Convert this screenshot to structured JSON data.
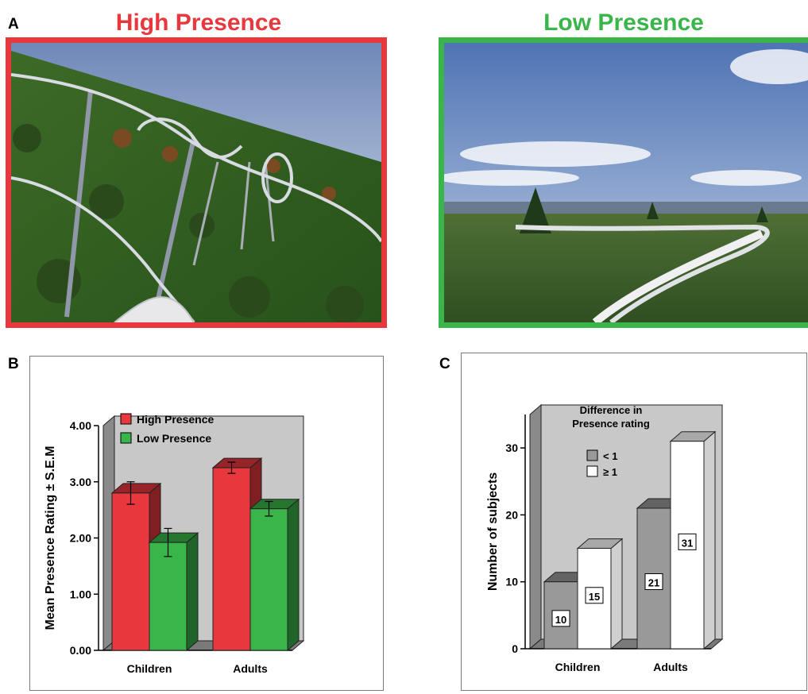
{
  "panel_a": {
    "letter": "A",
    "high_title": "High Presence",
    "low_title": "Low Presence",
    "high_color": "#e8383d",
    "low_color": "#3ab54a"
  },
  "panel_b": {
    "letter": "B"
  },
  "panel_c": {
    "letter": "C"
  },
  "chart_data": [
    {
      "type": "bar",
      "categories": [
        "Children",
        "Adults"
      ],
      "series": [
        {
          "name": "High Presence",
          "values": [
            2.8,
            3.25
          ],
          "errors": [
            0.2,
            0.1
          ],
          "color": "#e8383d"
        },
        {
          "name": "Low Presence",
          "values": [
            1.92,
            2.52
          ],
          "errors": [
            0.25,
            0.13
          ],
          "color": "#3ab54a"
        }
      ],
      "xlabel": "",
      "ylabel": "Mean Presence Rating ± S.E.M",
      "ylim": [
        0,
        4
      ],
      "yticks": [
        "0.00",
        "1.00",
        "2.00",
        "3.00",
        "4.00"
      ],
      "legend": "top-left",
      "style": "3d"
    },
    {
      "type": "bar",
      "categories": [
        "Children",
        "Adults"
      ],
      "legend_title": "Difference in Presence rating",
      "series": [
        {
          "name": "< 1",
          "values": [
            10,
            21
          ],
          "labels": [
            "10",
            "21"
          ],
          "color": "#999999"
        },
        {
          "name": "≥ 1",
          "values": [
            15,
            31
          ],
          "labels": [
            "15",
            "31"
          ],
          "color": "#ffffff"
        }
      ],
      "xlabel": "",
      "ylabel": "Number of subjects",
      "ylim": [
        0,
        35
      ],
      "yticks": [
        "0",
        "10",
        "20",
        "30"
      ],
      "legend": "top-left",
      "style": "3d"
    }
  ]
}
